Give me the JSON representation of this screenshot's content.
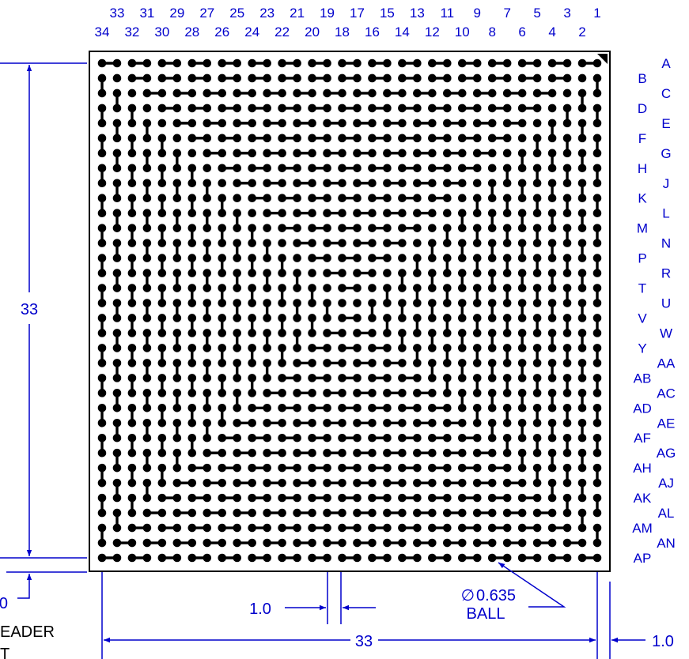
{
  "column_labels_top": [
    "33",
    "31",
    "29",
    "27",
    "25",
    "23",
    "21",
    "19",
    "17",
    "15",
    "13",
    "11",
    "9",
    "7",
    "5",
    "3",
    "1"
  ],
  "column_labels_bottom": [
    "34",
    "32",
    "30",
    "28",
    "26",
    "24",
    "22",
    "20",
    "18",
    "16",
    "14",
    "12",
    "10",
    "8",
    "6",
    "4",
    "2"
  ],
  "row_labels_right": [
    "A",
    "C",
    "E",
    "G",
    "J",
    "L",
    "N",
    "R",
    "U",
    "W",
    "AA",
    "AC",
    "AE",
    "AG",
    "AJ",
    "AL",
    "AN"
  ],
  "row_labels_left": [
    "B",
    "D",
    "F",
    "H",
    "K",
    "M",
    "P",
    "T",
    "V",
    "Y",
    "AB",
    "AD",
    "AF",
    "AH",
    "AK",
    "AM",
    "AP"
  ],
  "dim_vertical": "33",
  "dim_horizontal": "33",
  "dim_pitch": "1.0",
  "dim_edge_right": "1.0",
  "dim_edge_bottom": "0",
  "ball_symbol": "∅",
  "ball_diameter": "0.635",
  "ball_word": "BALL",
  "header_text_1": "EADER",
  "header_text_2": "T",
  "colors": {
    "dim": "#0000cc",
    "body": "#000000"
  }
}
